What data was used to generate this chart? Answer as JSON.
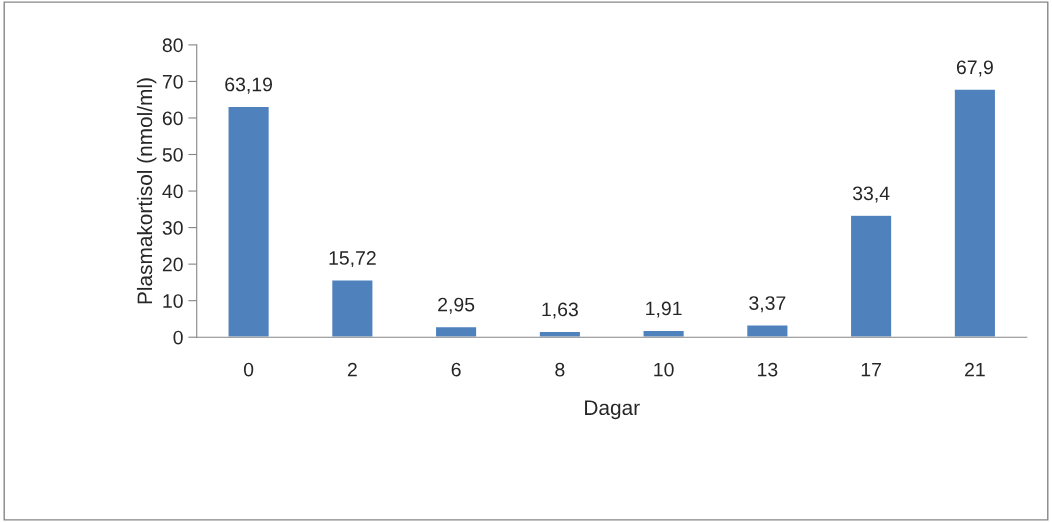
{
  "chart_data": {
    "type": "bar",
    "xlabel": "Dagar",
    "ylabel": "Plasmakortisol (nmol/ml)",
    "categories": [
      "0",
      "2",
      "6",
      "8",
      "10",
      "13",
      "17",
      "21"
    ],
    "values": [
      63.19,
      15.72,
      2.95,
      1.63,
      1.91,
      3.37,
      33.4,
      67.9
    ],
    "value_labels": [
      "63,19",
      "15,72",
      "2,95",
      "1,63",
      "1,91",
      "3,37",
      "33,4",
      "67,9"
    ],
    "color": "#4f81bd",
    "ylim": [
      0,
      80
    ],
    "yticks": [
      0,
      10,
      20,
      30,
      40,
      50,
      60,
      70,
      80
    ],
    "grid": false,
    "legend": false
  }
}
